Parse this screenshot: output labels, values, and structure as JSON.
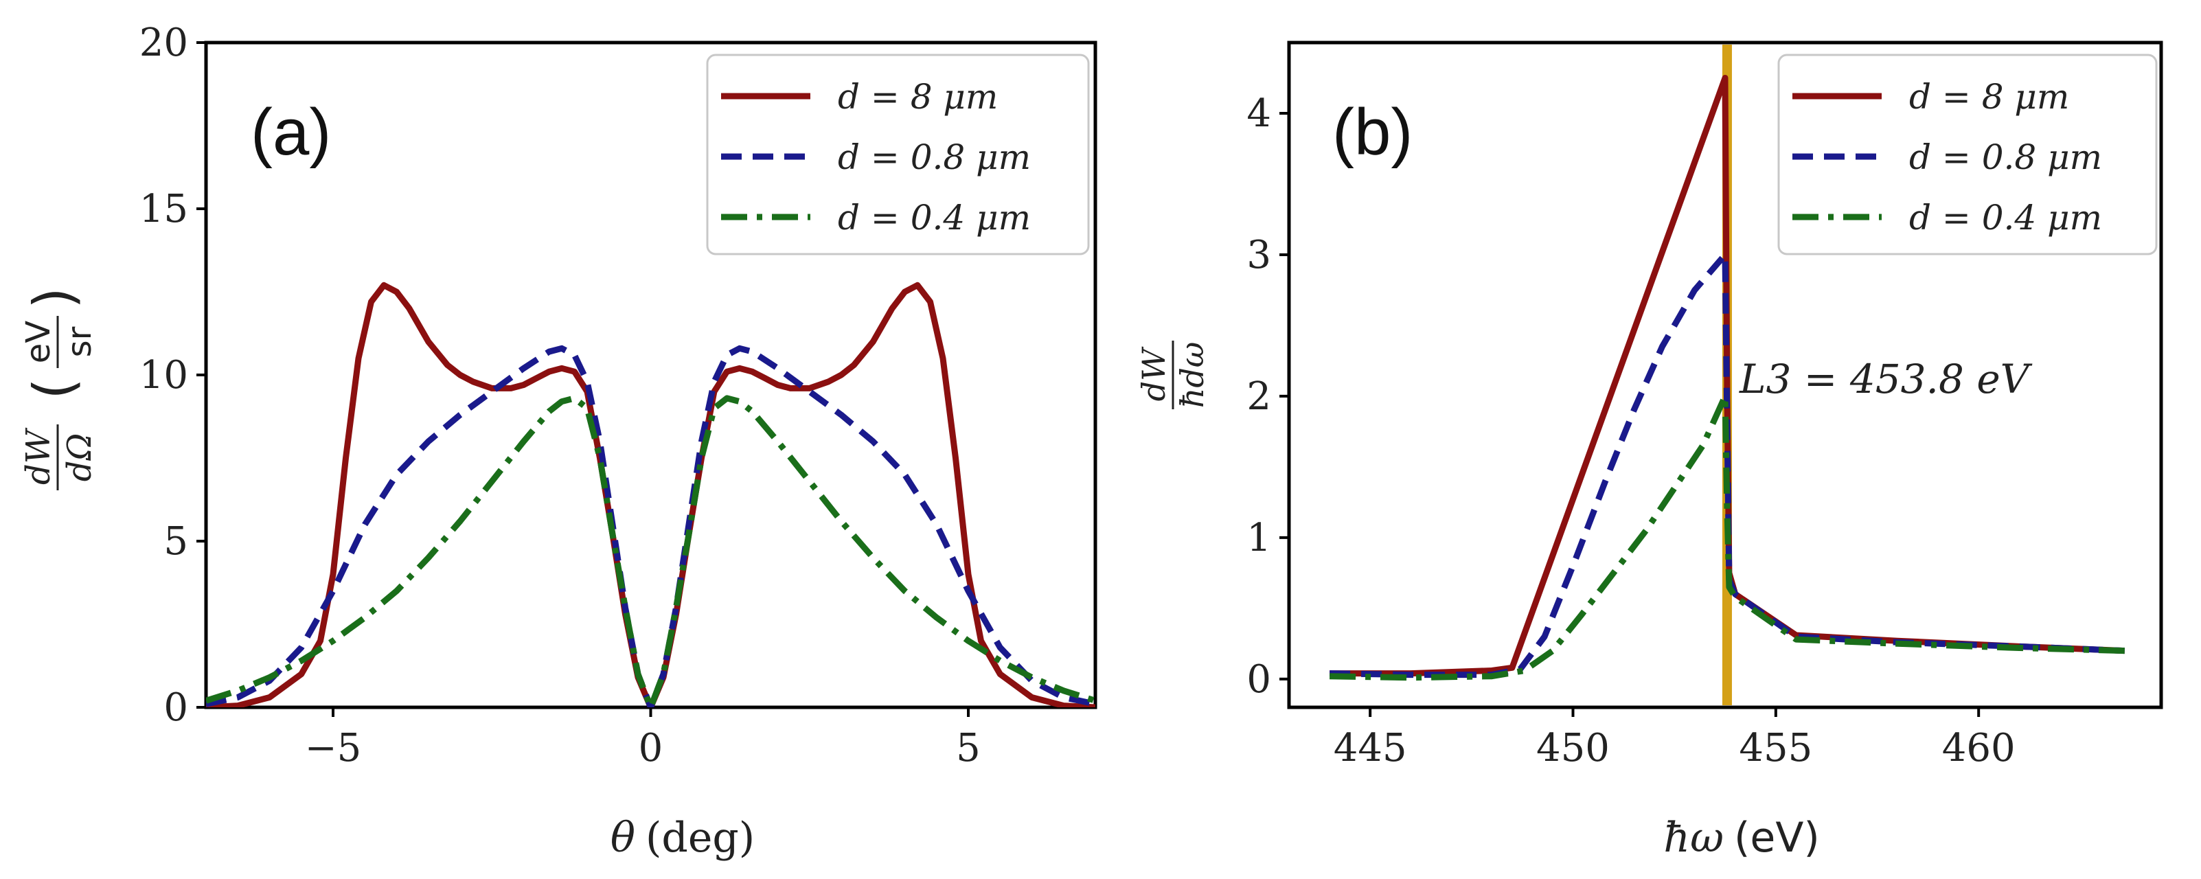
{
  "chart_data": [
    {
      "type": "line",
      "panel_label": "(a)",
      "xlabel": "θ (deg)",
      "ylabel": "dW/dΩ (eV/sr)",
      "xlim": [
        -7,
        7
      ],
      "ylim": [
        0,
        20
      ],
      "xticks": [
        -5,
        0,
        5
      ],
      "xtick_labels": [
        "−5",
        "0",
        "5"
      ],
      "yticks": [
        0,
        5,
        10,
        15,
        20
      ],
      "ytick_labels": [
        "0",
        "5",
        "10",
        "15",
        "20"
      ],
      "legend_position": "top-right",
      "series": [
        {
          "name": "d = 8 μm",
          "color": "#8b1010",
          "style": "solid",
          "x": [
            -7,
            -6.5,
            -6,
            -5.5,
            -5.2,
            -5,
            -4.8,
            -4.6,
            -4.4,
            -4.2,
            -4.0,
            -3.8,
            -3.5,
            -3.2,
            -3.0,
            -2.8,
            -2.5,
            -2.2,
            -2.0,
            -1.8,
            -1.6,
            -1.4,
            -1.2,
            -1.0,
            -0.8,
            -0.6,
            -0.4,
            -0.2,
            0,
            0.2,
            0.4,
            0.6,
            0.8,
            1.0,
            1.2,
            1.4,
            1.6,
            1.8,
            2.0,
            2.2,
            2.5,
            2.8,
            3.0,
            3.2,
            3.5,
            3.8,
            4.0,
            4.2,
            4.4,
            4.6,
            4.8,
            5.0,
            5.2,
            5.5,
            6.0,
            6.5,
            7.0
          ],
          "y": [
            0.0,
            0.05,
            0.3,
            1.0,
            2.0,
            4.0,
            7.5,
            10.5,
            12.2,
            12.7,
            12.5,
            12.0,
            11.0,
            10.3,
            10.0,
            9.8,
            9.6,
            9.6,
            9.7,
            9.9,
            10.1,
            10.2,
            10.1,
            9.5,
            7.5,
            5.2,
            2.8,
            0.9,
            0.0,
            0.9,
            2.8,
            5.2,
            7.5,
            9.5,
            10.1,
            10.2,
            10.1,
            9.9,
            9.7,
            9.6,
            9.6,
            9.8,
            10.0,
            10.3,
            11.0,
            12.0,
            12.5,
            12.7,
            12.2,
            10.5,
            7.5,
            4.0,
            2.0,
            1.0,
            0.3,
            0.05,
            0.0
          ]
        },
        {
          "name": "d = 0.8 μm",
          "color": "#1a1a8c",
          "style": "dashed",
          "x": [
            -7,
            -6.5,
            -6,
            -5.5,
            -5.0,
            -4.5,
            -4.0,
            -3.5,
            -3.0,
            -2.5,
            -2.0,
            -1.6,
            -1.4,
            -1.2,
            -1.0,
            -0.8,
            -0.6,
            -0.4,
            -0.2,
            0,
            0.2,
            0.4,
            0.6,
            0.8,
            1.0,
            1.2,
            1.4,
            1.6,
            2.0,
            2.5,
            3.0,
            3.5,
            4.0,
            4.5,
            5.0,
            5.5,
            6.0,
            6.5,
            7.0
          ],
          "y": [
            0.1,
            0.3,
            0.8,
            1.8,
            3.5,
            5.5,
            7.0,
            8.0,
            8.8,
            9.5,
            10.2,
            10.7,
            10.8,
            10.6,
            9.8,
            8.0,
            5.5,
            3.0,
            1.0,
            0.0,
            1.0,
            3.0,
            5.5,
            8.0,
            9.8,
            10.6,
            10.8,
            10.7,
            10.2,
            9.5,
            8.8,
            8.0,
            7.0,
            5.5,
            3.5,
            1.8,
            0.8,
            0.3,
            0.1
          ]
        },
        {
          "name": "d = 0.4 μm",
          "color": "#1a6e1a",
          "style": "dashdot",
          "x": [
            -7,
            -6.5,
            -6,
            -5.5,
            -5.0,
            -4.5,
            -4.0,
            -3.5,
            -3.0,
            -2.5,
            -2.0,
            -1.6,
            -1.4,
            -1.2,
            -1.0,
            -0.8,
            -0.6,
            -0.4,
            -0.2,
            0,
            0.2,
            0.4,
            0.6,
            0.8,
            1.0,
            1.2,
            1.4,
            1.6,
            2.0,
            2.5,
            3.0,
            3.5,
            4.0,
            4.5,
            5.0,
            5.5,
            6.0,
            6.5,
            7.0
          ],
          "y": [
            0.2,
            0.5,
            0.9,
            1.4,
            2.0,
            2.7,
            3.5,
            4.5,
            5.6,
            6.8,
            8.0,
            8.9,
            9.2,
            9.3,
            9.0,
            7.5,
            5.2,
            3.0,
            1.0,
            0.0,
            1.0,
            3.0,
            5.2,
            7.5,
            9.0,
            9.3,
            9.2,
            8.9,
            8.0,
            6.8,
            5.6,
            4.5,
            3.5,
            2.7,
            2.0,
            1.4,
            0.9,
            0.5,
            0.2
          ]
        }
      ]
    },
    {
      "type": "line",
      "panel_label": "(b)",
      "xlabel": "ħω (eV)",
      "ylabel": "dW/ħdω",
      "xlim": [
        443,
        464.5
      ],
      "ylim": [
        -0.2,
        4.5
      ],
      "xticks": [
        445,
        450,
        455,
        460
      ],
      "xtick_labels": [
        "445",
        "450",
        "455",
        "460"
      ],
      "yticks": [
        0,
        1,
        2,
        3,
        4
      ],
      "ytick_labels": [
        "0",
        "1",
        "2",
        "3",
        "4"
      ],
      "legend_position": "top-right",
      "annotation": {
        "text": "L3 = 453.8 eV",
        "x": 453.8,
        "y": 2.12
      },
      "vline": {
        "x": 453.8,
        "color": "#d4a017"
      },
      "series": [
        {
          "name": "d = 8 μm",
          "color": "#8b1010",
          "style": "solid",
          "x": [
            444,
            446,
            448,
            448.5,
            453.75,
            453.8,
            453.85,
            454.0,
            455.5,
            458,
            461,
            463.6
          ],
          "y": [
            0.04,
            0.04,
            0.06,
            0.08,
            4.25,
            2.0,
            0.75,
            0.6,
            0.31,
            0.27,
            0.23,
            0.2
          ]
        },
        {
          "name": "d = 0.8 μm",
          "color": "#1a1a8c",
          "style": "dashed",
          "x": [
            444,
            446,
            448,
            448.7,
            449.3,
            450,
            450.8,
            451.5,
            452.2,
            453.0,
            453.75,
            453.8,
            453.85,
            454.0,
            455.5,
            458,
            461,
            463.6
          ],
          "y": [
            0.04,
            0.03,
            0.03,
            0.07,
            0.3,
            0.8,
            1.4,
            1.9,
            2.35,
            2.75,
            3.0,
            1.8,
            0.7,
            0.6,
            0.3,
            0.26,
            0.23,
            0.2
          ]
        },
        {
          "name": "d = 0.4 μm",
          "color": "#1a6e1a",
          "style": "dashdot",
          "x": [
            444,
            446,
            448,
            448.8,
            449.5,
            450.2,
            451.0,
            451.8,
            452.5,
            453.2,
            453.75,
            453.8,
            453.85,
            454.0,
            455.5,
            458,
            461,
            463.6
          ],
          "y": [
            0.02,
            0.01,
            0.02,
            0.06,
            0.2,
            0.45,
            0.75,
            1.05,
            1.35,
            1.65,
            2.0,
            1.2,
            0.65,
            0.58,
            0.28,
            0.25,
            0.22,
            0.2
          ]
        }
      ]
    }
  ],
  "legend_labels": {
    "prefix": "d",
    "eq": "=",
    "values": [
      "8",
      "0.8",
      "0.4"
    ],
    "unit": "μm"
  },
  "ylabel_a": {
    "num": "dW",
    "den": "dΩ",
    "unit_num": "eV",
    "unit_den": "sr"
  },
  "ylabel_b": {
    "num": "dW",
    "den": "ħdω"
  },
  "xlabel_a": {
    "sym": "θ",
    "unit": "(deg)"
  },
  "xlabel_b": {
    "sym": "ħω",
    "unit": "(eV)"
  }
}
